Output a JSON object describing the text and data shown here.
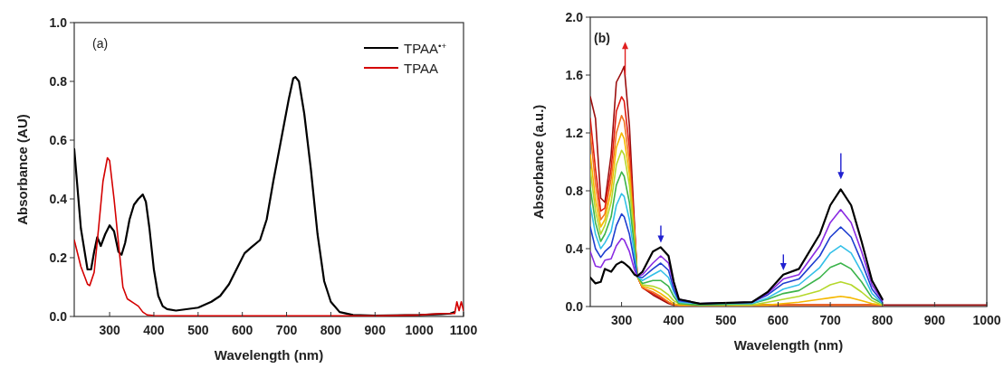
{
  "chart_data": [
    {
      "type": "line",
      "annotations": [
        "(a)"
      ],
      "xlabel": "Wavelength (nm)",
      "ylabel": "Absorbance (AU)",
      "xlim": [
        220,
        1100
      ],
      "xticks": [
        300,
        400,
        500,
        600,
        700,
        800,
        900,
        1000,
        1100
      ],
      "ylim": [
        0,
        1
      ],
      "yticks": [
        {
          "value": 0,
          "label": "0.0"
        },
        {
          "value": 0.2,
          "label": "0.2"
        },
        {
          "value": 0.4,
          "label": "0.4"
        },
        {
          "value": 0.6,
          "label": "0.6"
        },
        {
          "value": 0.8,
          "label": "0.8"
        },
        {
          "value": 1,
          "label": "1.0"
        }
      ],
      "grid": false,
      "legend": "top right",
      "series": [
        {
          "name": "TPAA$^{•+}$",
          "color": "#000000",
          "x": [
            220,
            235,
            250,
            258,
            265,
            272,
            280,
            290,
            300,
            310,
            320,
            327,
            335,
            345,
            355,
            365,
            375,
            382,
            390,
            400,
            410,
            420,
            430,
            450,
            500,
            530,
            550,
            570,
            590,
            605,
            620,
            640,
            655,
            670,
            690,
            705,
            715,
            720,
            728,
            740,
            755,
            770,
            785,
            800,
            820,
            850,
            900,
            1000,
            1050,
            1070,
            1080
          ],
          "values": [
            0.57,
            0.3,
            0.16,
            0.16,
            0.22,
            0.27,
            0.24,
            0.28,
            0.31,
            0.29,
            0.22,
            0.21,
            0.25,
            0.33,
            0.38,
            0.4,
            0.415,
            0.39,
            0.3,
            0.16,
            0.07,
            0.035,
            0.025,
            0.02,
            0.03,
            0.05,
            0.07,
            0.11,
            0.17,
            0.215,
            0.235,
            0.26,
            0.33,
            0.46,
            0.62,
            0.74,
            0.81,
            0.815,
            0.8,
            0.69,
            0.5,
            0.28,
            0.12,
            0.05,
            0.015,
            0.005,
            0.003,
            0.005,
            0.008,
            0.01,
            0.015
          ]
        },
        {
          "name": "TPAA",
          "color": "#d40000",
          "x": [
            220,
            235,
            250,
            255,
            265,
            275,
            285,
            295,
            300,
            310,
            320,
            330,
            340,
            355,
            365,
            375,
            385,
            400,
            500,
            700,
            900,
            1000,
            1050,
            1080,
            1085,
            1090,
            1095,
            1100
          ],
          "values": [
            0.26,
            0.17,
            0.11,
            0.105,
            0.15,
            0.3,
            0.46,
            0.54,
            0.53,
            0.4,
            0.25,
            0.1,
            0.06,
            0.045,
            0.035,
            0.015,
            0.005,
            0.003,
            0.002,
            0.002,
            0.002,
            0.005,
            0.01,
            0.01,
            0.05,
            0.02,
            0.05,
            0.02
          ]
        }
      ]
    },
    {
      "type": "line",
      "annotations": [
        "(b)"
      ],
      "xlabel": "Wavelength (nm)",
      "ylabel": "Absorbance (a.u.)",
      "xlim": [
        240,
        1000
      ],
      "xticks": [
        300,
        400,
        500,
        600,
        700,
        800,
        900,
        1000
      ],
      "ylim": [
        0,
        2
      ],
      "yticks": [
        {
          "value": 0,
          "label": "0.0"
        },
        {
          "value": 0.4,
          "label": "0.4"
        },
        {
          "value": 0.8,
          "label": "0.8"
        },
        {
          "value": 1.2,
          "label": "1.2"
        },
        {
          "value": 1.6,
          "label": "1.6"
        },
        {
          "value": 2,
          "label": "2.0"
        }
      ],
      "grid": false,
      "x": [
        240,
        250,
        260,
        268,
        280,
        290,
        300,
        305,
        315,
        325,
        330,
        340,
        360,
        375,
        390,
        400,
        410,
        450,
        550,
        580,
        610,
        640,
        680,
        700,
        720,
        740,
        760,
        780,
        800,
        850,
        1000
      ],
      "series": [
        {
          "color": "#9b0e0e",
          "values": [
            1.45,
            1.3,
            0.75,
            0.72,
            1.05,
            1.55,
            1.62,
            1.66,
            1.25,
            0.55,
            0.21,
            0.13,
            0.08,
            0.05,
            0.02,
            0.01,
            0.01,
            0.01,
            0.01,
            0.01,
            0.01,
            0.01,
            0.01,
            0.01,
            0.01,
            0.01,
            0.01,
            0.01,
            0.01,
            0.01,
            0.01
          ]
        },
        {
          "color": "#e01a10",
          "values": [
            1.3,
            0.95,
            0.66,
            0.68,
            0.95,
            1.35,
            1.45,
            1.42,
            1.1,
            0.52,
            0.21,
            0.13,
            0.09,
            0.06,
            0.03,
            0.01,
            0.01,
            0.01,
            0.01,
            0.01,
            0.01,
            0.01,
            0.01,
            0.01,
            0.01,
            0.01,
            0.01,
            0.01,
            0.01,
            null,
            null
          ]
        },
        {
          "color": "#f07020",
          "values": [
            1.2,
            0.85,
            0.6,
            0.64,
            0.88,
            1.2,
            1.32,
            1.28,
            1.0,
            0.5,
            0.21,
            0.13,
            0.1,
            0.07,
            0.03,
            0.01,
            0.01,
            0.01,
            0.01,
            0.01,
            0.01,
            0.01,
            0.01,
            0.01,
            0.01,
            0.01,
            0.01,
            0.01,
            0.01,
            null,
            null
          ]
        },
        {
          "color": "#f5b800",
          "values": [
            1.05,
            0.74,
            0.55,
            0.6,
            0.8,
            1.1,
            1.2,
            1.16,
            0.92,
            0.48,
            0.21,
            0.14,
            0.12,
            0.09,
            0.05,
            0.02,
            0.01,
            0.01,
            0.01,
            0.01,
            0.02,
            0.03,
            0.05,
            0.06,
            0.07,
            0.06,
            0.04,
            0.02,
            0.01,
            null,
            null
          ]
        },
        {
          "color": "#b5d82c",
          "values": [
            0.95,
            0.66,
            0.5,
            0.56,
            0.72,
            0.98,
            1.08,
            1.05,
            0.84,
            0.45,
            0.21,
            0.15,
            0.14,
            0.12,
            0.08,
            0.04,
            0.02,
            0.01,
            0.01,
            0.03,
            0.05,
            0.07,
            0.11,
            0.15,
            0.17,
            0.15,
            0.1,
            0.04,
            0.01,
            null,
            null
          ]
        },
        {
          "color": "#3cb44b",
          "values": [
            0.82,
            0.58,
            0.45,
            0.5,
            0.62,
            0.84,
            0.93,
            0.9,
            0.72,
            0.4,
            0.21,
            0.16,
            0.18,
            0.18,
            0.14,
            0.07,
            0.02,
            0.01,
            0.02,
            0.05,
            0.09,
            0.11,
            0.2,
            0.27,
            0.3,
            0.26,
            0.17,
            0.06,
            0.02,
            null,
            null
          ]
        },
        {
          "color": "#33c0e8",
          "values": [
            0.7,
            0.5,
            0.4,
            0.44,
            0.52,
            0.7,
            0.78,
            0.76,
            0.6,
            0.35,
            0.21,
            0.18,
            0.22,
            0.25,
            0.2,
            0.1,
            0.03,
            0.02,
            0.02,
            0.06,
            0.12,
            0.15,
            0.27,
            0.37,
            0.42,
            0.37,
            0.24,
            0.09,
            0.02,
            null,
            null
          ]
        },
        {
          "color": "#1f3fd0",
          "values": [
            0.55,
            0.4,
            0.34,
            0.38,
            0.42,
            0.56,
            0.64,
            0.62,
            0.5,
            0.3,
            0.21,
            0.2,
            0.26,
            0.3,
            0.25,
            0.12,
            0.04,
            0.02,
            0.03,
            0.08,
            0.16,
            0.19,
            0.35,
            0.48,
            0.55,
            0.48,
            0.31,
            0.12,
            0.03,
            null,
            null
          ]
        },
        {
          "color": "#8a2be2",
          "values": [
            0.38,
            0.28,
            0.27,
            0.32,
            0.33,
            0.42,
            0.47,
            0.46,
            0.38,
            0.25,
            0.21,
            0.22,
            0.3,
            0.35,
            0.3,
            0.15,
            0.05,
            0.02,
            0.03,
            0.09,
            0.19,
            0.22,
            0.42,
            0.58,
            0.67,
            0.58,
            0.38,
            0.15,
            0.04,
            null,
            null
          ]
        },
        {
          "color": "#000000",
          "values": [
            0.2,
            0.16,
            0.17,
            0.26,
            0.24,
            0.29,
            0.31,
            0.3,
            0.27,
            0.22,
            0.21,
            0.24,
            0.38,
            0.41,
            0.35,
            0.17,
            0.05,
            0.02,
            0.03,
            0.1,
            0.22,
            0.26,
            0.5,
            0.7,
            0.81,
            0.7,
            0.45,
            0.18,
            0.05,
            null,
            null
          ]
        }
      ]
    }
  ]
}
